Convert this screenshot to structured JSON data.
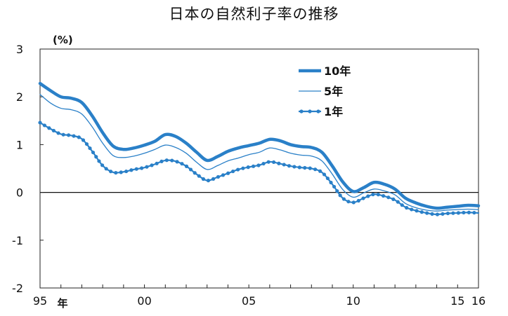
{
  "title": "日本の自然利子率の推移",
  "chart_data": {
    "type": "line",
    "title": "日本の自然利子率の推移",
    "ylabel": "(%)",
    "xlabel_suffix": "年",
    "ylim": [
      -2,
      3
    ],
    "xlim": [
      1995,
      2016
    ],
    "yticks": [
      3,
      2,
      1,
      0,
      -1,
      -2
    ],
    "xtick_labels": [
      {
        "x": 1995,
        "label": "95"
      },
      {
        "x": 2000,
        "label": "00"
      },
      {
        "x": 2005,
        "label": "05"
      },
      {
        "x": 2010,
        "label": "10"
      },
      {
        "x": 2015,
        "label": "15"
      },
      {
        "x": 2016,
        "label": "16"
      }
    ],
    "grid": false,
    "legend_position": "top-center",
    "x": [
      1995,
      1995.5,
      1996,
      1996.5,
      1997,
      1997.5,
      1998,
      1998.5,
      1999,
      1999.5,
      2000,
      2000.5,
      2001,
      2001.5,
      2002,
      2002.5,
      2003,
      2003.5,
      2004,
      2004.5,
      2005,
      2005.5,
      2006,
      2006.5,
      2007,
      2007.5,
      2008,
      2008.5,
      2009,
      2009.5,
      2010,
      2010.5,
      2011,
      2011.5,
      2012,
      2012.5,
      2013,
      2013.5,
      2014,
      2014.5,
      2015,
      2015.5,
      2016
    ],
    "series": [
      {
        "name": "10年",
        "color": "#2a80c8",
        "style": "thick",
        "values": [
          2.28,
          2.13,
          2.0,
          1.97,
          1.88,
          1.6,
          1.25,
          0.97,
          0.9,
          0.93,
          0.99,
          1.07,
          1.21,
          1.17,
          1.03,
          0.84,
          0.67,
          0.75,
          0.86,
          0.93,
          0.98,
          1.03,
          1.11,
          1.08,
          1.0,
          0.96,
          0.94,
          0.84,
          0.55,
          0.22,
          0.02,
          0.1,
          0.21,
          0.17,
          0.07,
          -0.12,
          -0.22,
          -0.29,
          -0.33,
          -0.31,
          -0.29,
          -0.27,
          -0.28
        ]
      },
      {
        "name": "5年",
        "color": "#2a80c8",
        "style": "thin",
        "values": [
          2.05,
          1.87,
          1.76,
          1.73,
          1.64,
          1.37,
          1.03,
          0.77,
          0.73,
          0.76,
          0.82,
          0.9,
          0.99,
          0.94,
          0.82,
          0.63,
          0.48,
          0.56,
          0.66,
          0.72,
          0.79,
          0.84,
          0.93,
          0.89,
          0.82,
          0.78,
          0.76,
          0.66,
          0.38,
          0.06,
          -0.1,
          -0.01,
          0.07,
          0.03,
          -0.05,
          -0.23,
          -0.32,
          -0.37,
          -0.39,
          -0.37,
          -0.36,
          -0.35,
          -0.36
        ]
      },
      {
        "name": "1年",
        "color": "#2a80c8",
        "style": "dotted",
        "values": [
          1.46,
          1.33,
          1.22,
          1.19,
          1.12,
          0.86,
          0.56,
          0.42,
          0.43,
          0.48,
          0.52,
          0.59,
          0.67,
          0.65,
          0.55,
          0.38,
          0.25,
          0.32,
          0.4,
          0.48,
          0.53,
          0.57,
          0.64,
          0.6,
          0.55,
          0.52,
          0.5,
          0.42,
          0.17,
          -0.12,
          -0.21,
          -0.12,
          -0.04,
          -0.08,
          -0.16,
          -0.31,
          -0.38,
          -0.43,
          -0.46,
          -0.44,
          -0.43,
          -0.42,
          -0.43
        ]
      }
    ]
  }
}
